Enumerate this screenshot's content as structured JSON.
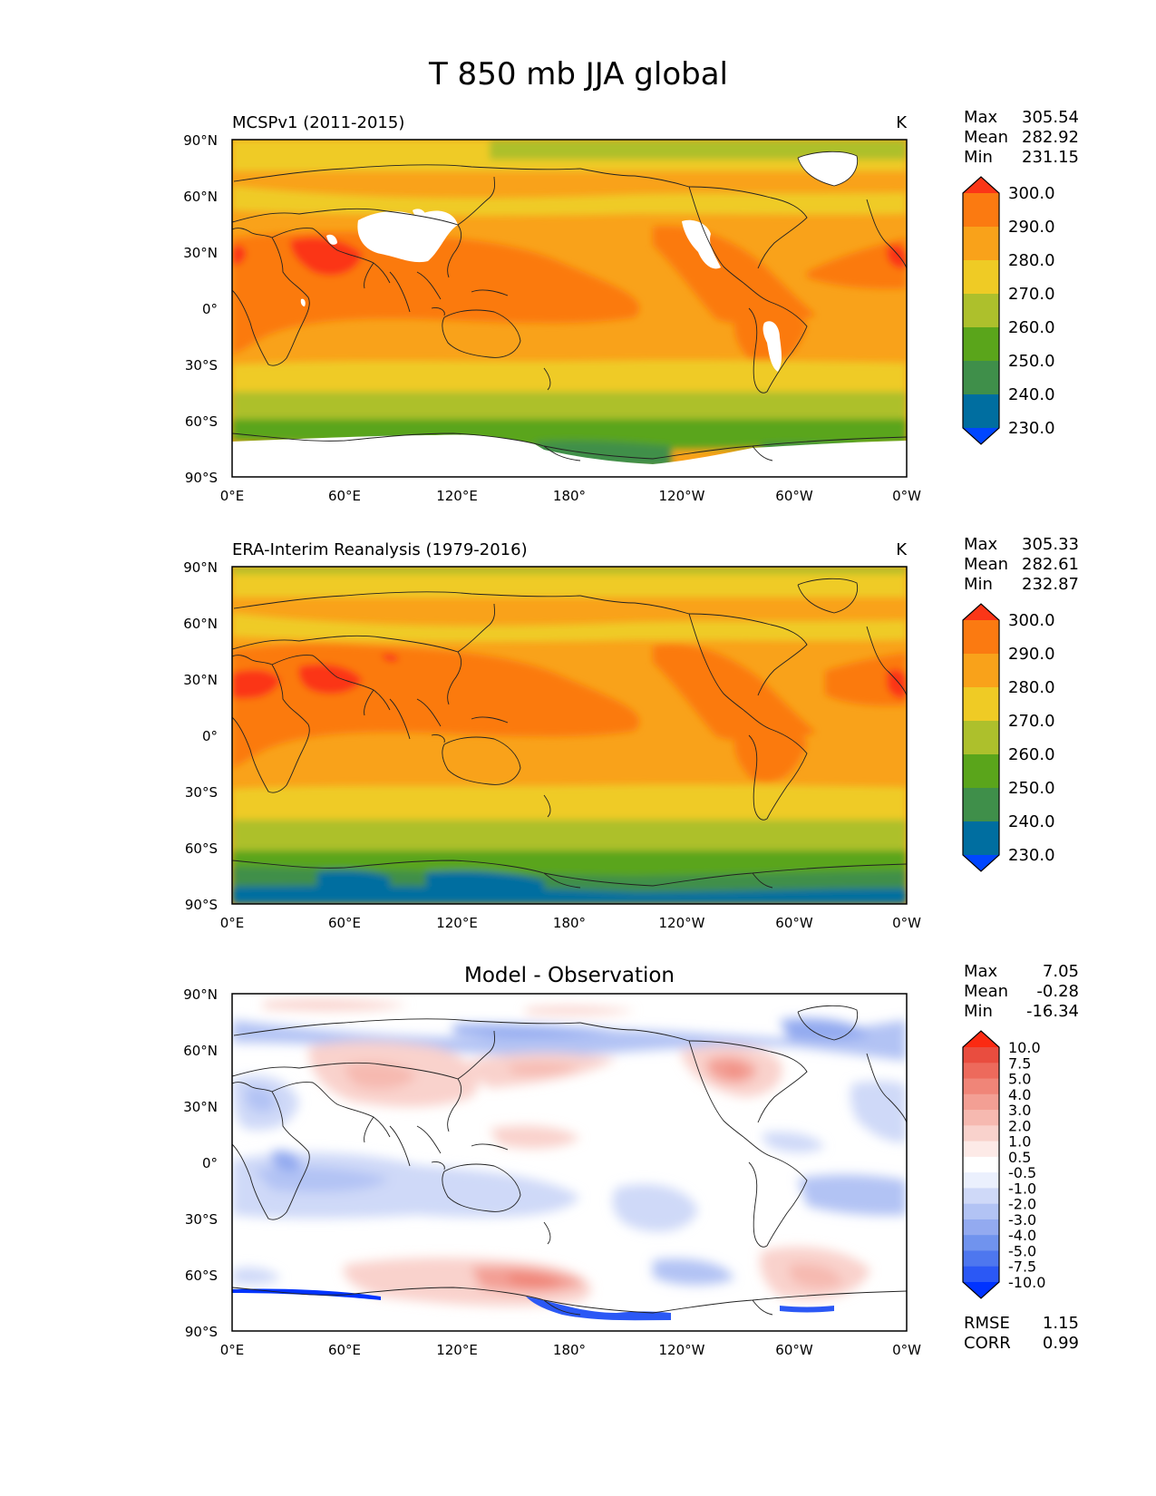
{
  "figure": {
    "title": "T 850 mb JJA global"
  },
  "colors": {
    "abs_levels": [
      "#0046ff",
      "#006ea0",
      "#3f8f4a",
      "#5aa51b",
      "#adc02c",
      "#efcb25",
      "#f9a21a",
      "#fb7a11",
      "#fb3617"
    ],
    "diff_levels": [
      "#0033ff",
      "#2b58f5",
      "#4e77ef",
      "#7093ee",
      "#93aaf0",
      "#b2c3f4",
      "#cfd9f8",
      "#ebf0fd",
      "#ffffff",
      "#fdeae7",
      "#f9d2cc",
      "#f6b9b0",
      "#f39f94",
      "#f08578",
      "#ed6a5c",
      "#e94d3f",
      "#fb2a12"
    ],
    "land_outline": "#222222",
    "missing": "#ffffff"
  },
  "chart_data": [
    {
      "type": "heatmap",
      "title": "MCSPv1 (2011-2015)",
      "units": "K",
      "stats": {
        "max_label": "Max",
        "max": "305.54",
        "mean_label": "Mean",
        "mean": "282.92",
        "min_label": "Min",
        "min": "231.15"
      },
      "x_ticks": [
        "0°E",
        "60°E",
        "120°E",
        "180°",
        "120°W",
        "60°W",
        "0°W"
      ],
      "y_ticks": [
        "90°N",
        "60°N",
        "30°N",
        "0°",
        "30°S",
        "60°S",
        "90°S"
      ],
      "xlim": [
        0,
        360
      ],
      "ylim": [
        -90,
        90
      ],
      "colorbar": {
        "levels": [
          "300.0",
          "290.0",
          "280.0",
          "270.0",
          "260.0",
          "250.0",
          "240.0",
          "230.0"
        ],
        "extend": "both"
      }
    },
    {
      "type": "heatmap",
      "title": "ERA-Interim Reanalysis (1979-2016)",
      "units": "K",
      "stats": {
        "max_label": "Max",
        "max": "305.33",
        "mean_label": "Mean",
        "mean": "282.61",
        "min_label": "Min",
        "min": "232.87"
      },
      "x_ticks": [
        "0°E",
        "60°E",
        "120°E",
        "180°",
        "120°W",
        "60°W",
        "0°W"
      ],
      "y_ticks": [
        "90°N",
        "60°N",
        "30°N",
        "0°",
        "30°S",
        "60°S",
        "90°S"
      ],
      "xlim": [
        0,
        360
      ],
      "ylim": [
        -90,
        90
      ],
      "colorbar": {
        "levels": [
          "300.0",
          "290.0",
          "280.0",
          "270.0",
          "260.0",
          "250.0",
          "240.0",
          "230.0"
        ],
        "extend": "both"
      }
    },
    {
      "type": "heatmap",
      "title": "Model - Observation",
      "units": "",
      "stats": {
        "max_label": "Max",
        "max": "7.05",
        "mean_label": "Mean",
        "mean": "-0.28",
        "min_label": "Min",
        "min": "-16.34"
      },
      "extra_stats": {
        "rmse_label": "RMSE",
        "rmse": "1.15",
        "corr_label": "CORR",
        "corr": "0.99"
      },
      "x_ticks": [
        "0°E",
        "60°E",
        "120°E",
        "180°",
        "120°W",
        "60°W",
        "0°W"
      ],
      "y_ticks": [
        "90°N",
        "60°N",
        "30°N",
        "0°",
        "30°S",
        "60°S",
        "90°S"
      ],
      "xlim": [
        0,
        360
      ],
      "ylim": [
        -90,
        90
      ],
      "colorbar": {
        "levels": [
          "10.0",
          "7.5",
          "5.0",
          "4.0",
          "3.0",
          "2.0",
          "1.0",
          "0.5",
          "-0.5",
          "-1.0",
          "-2.0",
          "-3.0",
          "-4.0",
          "-5.0",
          "-7.5",
          "-10.0"
        ],
        "extend": "both"
      }
    }
  ]
}
